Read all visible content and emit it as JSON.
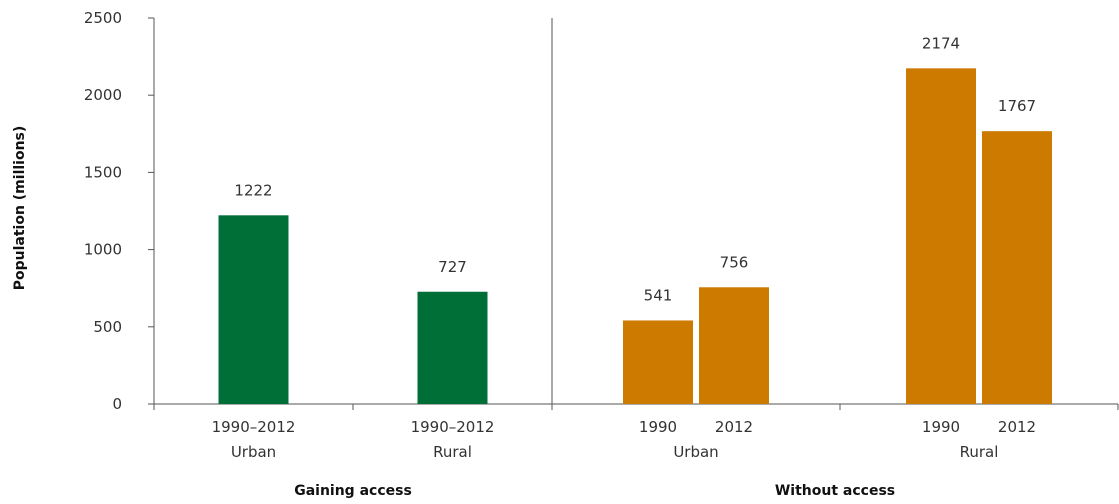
{
  "chart_data": {
    "type": "bar",
    "ylabel": "Population (millions)",
    "ylim": [
      0,
      2500
    ],
    "yticks": [
      0,
      500,
      1000,
      1500,
      2000,
      2500
    ],
    "grid": false,
    "groups": [
      {
        "name": "Gaining access",
        "subgroups": [
          {
            "name": "Urban",
            "bars": [
              {
                "label": "1990–2012",
                "value": 1222,
                "color": "#006e37"
              }
            ]
          },
          {
            "name": "Rural",
            "bars": [
              {
                "label": "1990–2012",
                "value": 727,
                "color": "#006e37"
              }
            ]
          }
        ]
      },
      {
        "name": "Without access",
        "subgroups": [
          {
            "name": "Urban",
            "bars": [
              {
                "label": "1990",
                "value": 541,
                "color": "#cc7a00"
              },
              {
                "label": "2012",
                "value": 756,
                "color": "#cc7a00"
              }
            ]
          },
          {
            "name": "Rural",
            "bars": [
              {
                "label": "1990",
                "value": 2174,
                "color": "#cc7a00"
              },
              {
                "label": "2012",
                "value": 1767,
                "color": "#cc7a00"
              }
            ]
          }
        ]
      }
    ]
  }
}
